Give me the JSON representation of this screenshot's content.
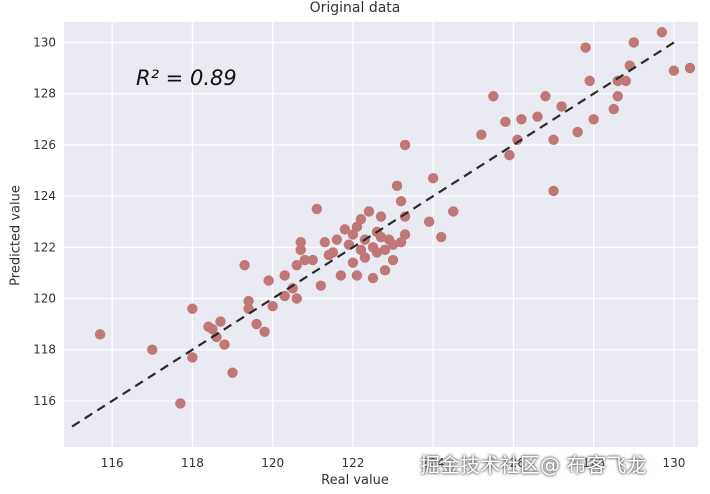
{
  "chart_data": {
    "type": "scatter",
    "title": "Original data",
    "xlabel": "Real value",
    "ylabel": "Predicted value",
    "annotation": "R² = 0.89",
    "xlim": [
      114.8,
      130.6
    ],
    "ylim": [
      114.2,
      130.8
    ],
    "xticks": [
      116,
      118,
      120,
      122,
      124,
      126,
      128,
      130
    ],
    "yticks": [
      116,
      118,
      120,
      122,
      124,
      126,
      128,
      130
    ],
    "grid": true,
    "colors": {
      "points": "#c07778",
      "fit_line": "#2b2b2b",
      "panel": "#eaeaf2",
      "grid": "#ffffff"
    },
    "fit_line": {
      "x": [
        115.0,
        130.0
      ],
      "y": [
        115.0,
        130.0
      ],
      "style": "dashed"
    },
    "points": [
      {
        "x": 115.7,
        "y": 118.6
      },
      {
        "x": 117.0,
        "y": 118.0
      },
      {
        "x": 117.7,
        "y": 115.9
      },
      {
        "x": 118.0,
        "y": 119.6
      },
      {
        "x": 118.0,
        "y": 117.7
      },
      {
        "x": 118.4,
        "y": 118.9
      },
      {
        "x": 118.5,
        "y": 118.8
      },
      {
        "x": 118.6,
        "y": 118.5
      },
      {
        "x": 118.7,
        "y": 119.1
      },
      {
        "x": 118.8,
        "y": 118.2
      },
      {
        "x": 119.0,
        "y": 117.1
      },
      {
        "x": 119.3,
        "y": 121.3
      },
      {
        "x": 119.4,
        "y": 119.9
      },
      {
        "x": 119.4,
        "y": 119.6
      },
      {
        "x": 119.6,
        "y": 119.0
      },
      {
        "x": 119.8,
        "y": 118.7
      },
      {
        "x": 119.9,
        "y": 120.7
      },
      {
        "x": 120.0,
        "y": 119.7
      },
      {
        "x": 120.3,
        "y": 120.9
      },
      {
        "x": 120.3,
        "y": 120.1
      },
      {
        "x": 120.5,
        "y": 120.4
      },
      {
        "x": 120.6,
        "y": 120.0
      },
      {
        "x": 120.6,
        "y": 121.3
      },
      {
        "x": 120.7,
        "y": 121.9
      },
      {
        "x": 120.7,
        "y": 122.2
      },
      {
        "x": 120.8,
        "y": 121.5
      },
      {
        "x": 121.0,
        "y": 121.5
      },
      {
        "x": 121.1,
        "y": 123.5
      },
      {
        "x": 121.2,
        "y": 120.5
      },
      {
        "x": 121.3,
        "y": 122.2
      },
      {
        "x": 121.4,
        "y": 121.7
      },
      {
        "x": 121.5,
        "y": 121.8
      },
      {
        "x": 121.6,
        "y": 122.3
      },
      {
        "x": 121.7,
        "y": 120.9
      },
      {
        "x": 121.8,
        "y": 122.7
      },
      {
        "x": 121.9,
        "y": 122.1
      },
      {
        "x": 122.0,
        "y": 121.4
      },
      {
        "x": 122.0,
        "y": 122.5
      },
      {
        "x": 122.1,
        "y": 120.9
      },
      {
        "x": 122.1,
        "y": 122.8
      },
      {
        "x": 122.2,
        "y": 121.9
      },
      {
        "x": 122.2,
        "y": 123.1
      },
      {
        "x": 122.3,
        "y": 122.3
      },
      {
        "x": 122.3,
        "y": 121.6
      },
      {
        "x": 122.4,
        "y": 123.4
      },
      {
        "x": 122.5,
        "y": 122.0
      },
      {
        "x": 122.5,
        "y": 120.8
      },
      {
        "x": 122.6,
        "y": 122.6
      },
      {
        "x": 122.6,
        "y": 121.8
      },
      {
        "x": 122.7,
        "y": 123.2
      },
      {
        "x": 122.7,
        "y": 122.4
      },
      {
        "x": 122.8,
        "y": 121.1
      },
      {
        "x": 122.8,
        "y": 121.9
      },
      {
        "x": 122.9,
        "y": 122.3
      },
      {
        "x": 123.0,
        "y": 122.1
      },
      {
        "x": 123.0,
        "y": 121.5
      },
      {
        "x": 123.1,
        "y": 124.4
      },
      {
        "x": 123.2,
        "y": 123.8
      },
      {
        "x": 123.2,
        "y": 122.2
      },
      {
        "x": 123.3,
        "y": 126.0
      },
      {
        "x": 123.3,
        "y": 122.5
      },
      {
        "x": 123.3,
        "y": 123.2
      },
      {
        "x": 123.9,
        "y": 123.0
      },
      {
        "x": 124.0,
        "y": 124.7
      },
      {
        "x": 124.2,
        "y": 122.4
      },
      {
        "x": 124.5,
        "y": 123.4
      },
      {
        "x": 125.2,
        "y": 126.4
      },
      {
        "x": 125.5,
        "y": 127.9
      },
      {
        "x": 125.8,
        "y": 126.9
      },
      {
        "x": 125.9,
        "y": 125.6
      },
      {
        "x": 126.1,
        "y": 126.2
      },
      {
        "x": 126.2,
        "y": 127.0
      },
      {
        "x": 126.6,
        "y": 127.1
      },
      {
        "x": 126.8,
        "y": 127.9
      },
      {
        "x": 127.0,
        "y": 124.2
      },
      {
        "x": 127.0,
        "y": 126.2
      },
      {
        "x": 127.2,
        "y": 127.5
      },
      {
        "x": 127.6,
        "y": 126.5
      },
      {
        "x": 127.8,
        "y": 129.8
      },
      {
        "x": 127.9,
        "y": 128.5
      },
      {
        "x": 128.0,
        "y": 127.0
      },
      {
        "x": 128.5,
        "y": 127.4
      },
      {
        "x": 128.6,
        "y": 127.9
      },
      {
        "x": 128.6,
        "y": 128.5
      },
      {
        "x": 128.8,
        "y": 128.5
      },
      {
        "x": 128.9,
        "y": 129.1
      },
      {
        "x": 129.0,
        "y": 130.0
      },
      {
        "x": 129.7,
        "y": 130.4
      },
      {
        "x": 130.0,
        "y": 128.9
      },
      {
        "x": 130.4,
        "y": 129.0
      }
    ]
  },
  "watermark": "掘金技术社区@ 布客飞龙"
}
